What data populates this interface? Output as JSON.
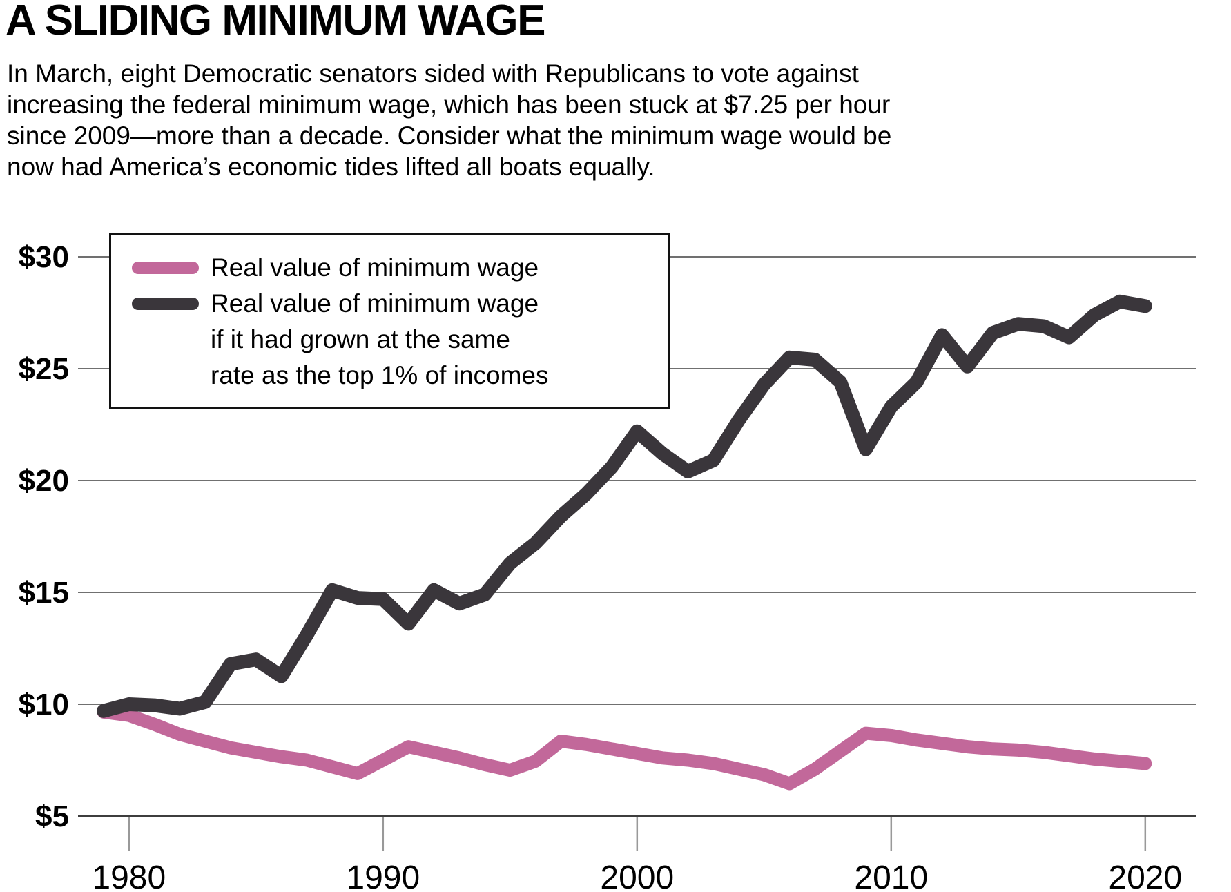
{
  "header": {
    "title": "A SLIDING MINIMUM WAGE",
    "subtitle_lines": [
      "In March, eight Democratic senators sided with Republicans to vote against",
      "increasing the federal minimum wage, which has been stuck at $7.25 per hour",
      "since 2009—more than a decade. Consider what the minimum wage would be",
      "now had America’s economic tides lifted all boats equally."
    ]
  },
  "legend": {
    "items": [
      {
        "color": "#c2689a",
        "label_lines": [
          "Real value of minimum wage"
        ]
      },
      {
        "color": "#3a363b",
        "label_lines": [
          "Real value of minimum wage",
          "if it had grown at the same",
          "rate as the top 1% of incomes"
        ]
      }
    ]
  },
  "colors": {
    "pink_line": "#c2689a",
    "black_line": "#3a363b",
    "gridline": "#707070",
    "axis_line": "#3d3d3d",
    "tick": "#999999"
  },
  "chart_data": {
    "type": "line",
    "title": "A SLIDING MINIMUM WAGE",
    "xlabel": "",
    "ylabel": "",
    "grid": true,
    "legend_position": "top-left",
    "xlim": [
      1979,
      2020
    ],
    "ylim": [
      5,
      30
    ],
    "x": [
      1979,
      1980,
      1981,
      1982,
      1983,
      1984,
      1985,
      1986,
      1987,
      1988,
      1989,
      1990,
      1991,
      1992,
      1993,
      1994,
      1995,
      1996,
      1997,
      1998,
      1999,
      2000,
      2001,
      2002,
      2003,
      2004,
      2005,
      2006,
      2007,
      2008,
      2009,
      2010,
      2011,
      2012,
      2013,
      2014,
      2015,
      2016,
      2017,
      2018,
      2019,
      2020
    ],
    "series": [
      {
        "name": "Real value of minimum wage",
        "color": "#c2689a",
        "stroke_width": 19,
        "values": [
          9.65,
          9.5,
          9.1,
          8.65,
          8.35,
          8.05,
          7.85,
          7.65,
          7.5,
          7.2,
          6.9,
          7.5,
          8.1,
          7.85,
          7.6,
          7.3,
          7.05,
          7.45,
          8.35,
          8.2,
          8.0,
          7.8,
          7.6,
          7.5,
          7.35,
          7.1,
          6.85,
          6.45,
          7.1,
          7.9,
          8.7,
          8.6,
          8.4,
          8.25,
          8.1,
          8.0,
          7.95,
          7.85,
          7.7,
          7.55,
          7.45,
          7.35
        ]
      },
      {
        "name": "Real value of minimum wage if it had grown at the same rate as the top 1% of incomes",
        "color": "#3a363b",
        "stroke_width": 20,
        "values": [
          9.7,
          10.0,
          9.95,
          9.8,
          10.1,
          11.8,
          12.0,
          11.25,
          13.1,
          15.1,
          14.75,
          14.7,
          13.6,
          15.1,
          14.5,
          14.9,
          16.3,
          17.2,
          18.4,
          19.4,
          20.6,
          22.2,
          21.2,
          20.4,
          20.9,
          22.7,
          24.3,
          25.5,
          25.4,
          24.4,
          21.4,
          23.3,
          24.4,
          26.5,
          25.1,
          26.6,
          27.0,
          26.9,
          26.4,
          27.4,
          28.0,
          27.8
        ]
      }
    ],
    "y_ticks": [
      {
        "value": 30,
        "label": "$30"
      },
      {
        "value": 25,
        "label": "$25"
      },
      {
        "value": 20,
        "label": "$20"
      },
      {
        "value": 15,
        "label": "$15"
      },
      {
        "value": 10,
        "label": "$10"
      },
      {
        "value": 5,
        "label": "$5"
      }
    ],
    "x_ticks": [
      {
        "value": 1980,
        "label": "1980"
      },
      {
        "value": 1990,
        "label": "1990"
      },
      {
        "value": 2000,
        "label": "2000"
      },
      {
        "value": 2010,
        "label": "2010"
      },
      {
        "value": 2020,
        "label": "2020"
      }
    ]
  }
}
